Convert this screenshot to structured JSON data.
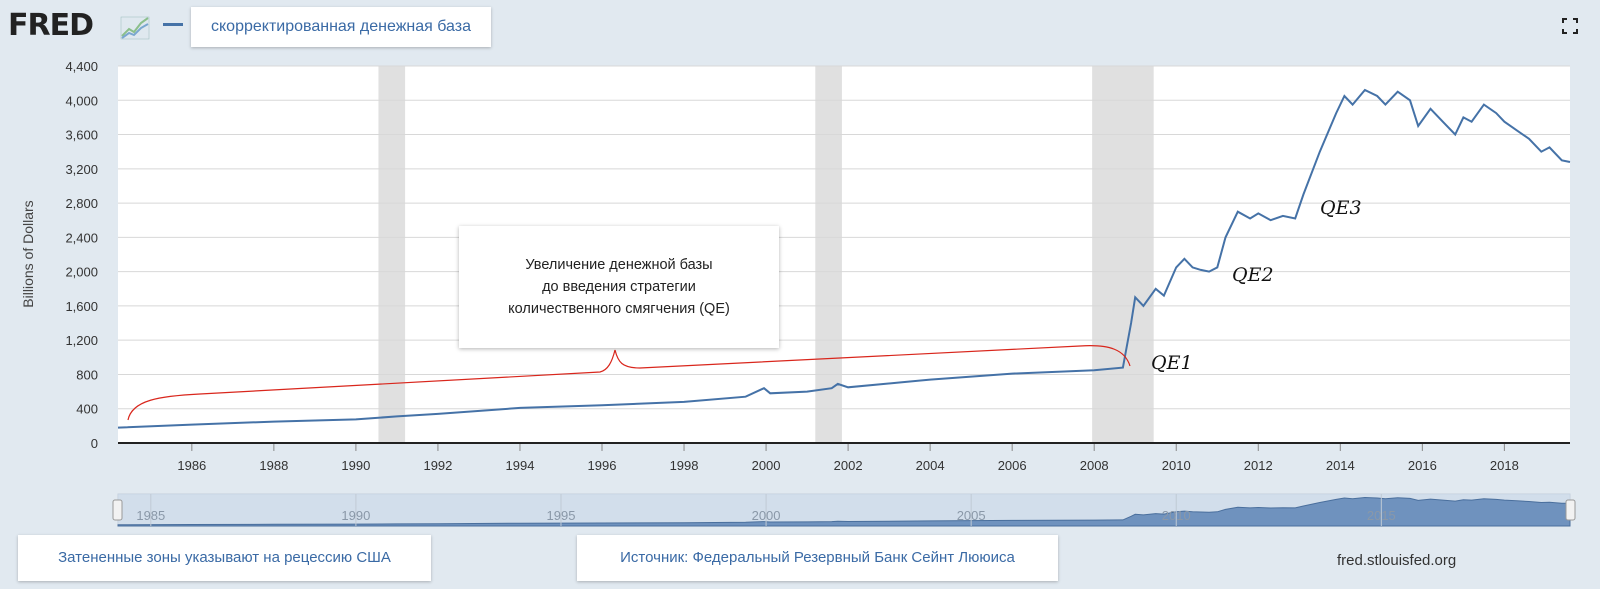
{
  "header": {
    "logo_text": "FRED",
    "series_label": "скорректированная денежная база"
  },
  "chart_data": {
    "type": "line",
    "ylabel": "Billions of Dollars",
    "ylim": [
      0,
      4400
    ],
    "yticks": [
      "0",
      "400",
      "800",
      "1,200",
      "1,600",
      "2,000",
      "2,400",
      "2,800",
      "3,200",
      "3,600",
      "4,000",
      "4,400"
    ],
    "xlim": [
      1984.2,
      2019.6
    ],
    "xticks": [
      "1986",
      "1988",
      "1990",
      "1992",
      "1994",
      "1996",
      "1998",
      "2000",
      "2002",
      "2004",
      "2006",
      "2008",
      "2010",
      "2012",
      "2014",
      "2016",
      "2018"
    ],
    "recessions": [
      [
        1990.55,
        1991.2
      ],
      [
        2001.2,
        2001.85
      ],
      [
        2007.95,
        2009.45
      ]
    ],
    "series": [
      {
        "color": "#4572a7",
        "x": [
          1984.2,
          1986,
          1988,
          1990,
          1991,
          1992,
          1994,
          1996,
          1998,
          1999.5,
          1999.95,
          2000.1,
          2001,
          2001.6,
          2001.75,
          2002,
          2004,
          2006,
          2008,
          2008.7,
          2008.9,
          2009.0,
          2009.2,
          2009.5,
          2009.7,
          2010.0,
          2010.2,
          2010.4,
          2010.6,
          2010.8,
          2011.0,
          2011.2,
          2011.5,
          2011.8,
          2012.0,
          2012.3,
          2012.6,
          2012.9,
          2013.1,
          2013.5,
          2013.9,
          2014.1,
          2014.3,
          2014.6,
          2014.9,
          2015.1,
          2015.4,
          2015.7,
          2015.9,
          2016.2,
          2016.5,
          2016.8,
          2017.0,
          2017.2,
          2017.5,
          2017.8,
          2018.0,
          2018.3,
          2018.6,
          2018.9,
          2019.1,
          2019.4,
          2019.6
        ],
        "y": [
          180,
          215,
          250,
          275,
          310,
          340,
          410,
          440,
          480,
          540,
          640,
          580,
          600,
          640,
          690,
          650,
          740,
          810,
          850,
          880,
          1400,
          1700,
          1600,
          1800,
          1720,
          2050,
          2150,
          2050,
          2020,
          2000,
          2050,
          2400,
          2700,
          2620,
          2680,
          2600,
          2650,
          2620,
          2900,
          3400,
          3850,
          4050,
          3950,
          4120,
          4050,
          3950,
          4100,
          4000,
          3700,
          3900,
          3750,
          3600,
          3800,
          3750,
          3950,
          3850,
          3750,
          3650,
          3550,
          3400,
          3450,
          3300,
          3280
        ]
      }
    ],
    "annotations": {
      "box_lines": [
        "Увеличение денежной базы",
        "до введения стратегии",
        "количественного смягчения (QE)"
      ],
      "qe1": "QE1",
      "qe2": "QE2",
      "qe3": "QE3"
    },
    "navigator_ticks": [
      "1985",
      "1990",
      "1995",
      "2000",
      "2005",
      "2010",
      "2015"
    ]
  },
  "footer": {
    "recession_note": "Затененные зоны указывают на рецессию США",
    "source_note": "Источник: Федеральный Резервный Банк Сейнт Лююиса",
    "url": "fred.stlouisfed.org"
  },
  "colors": {
    "line": "#4572a7",
    "recession": "#e0e0e0",
    "brace": "#d9261c"
  }
}
